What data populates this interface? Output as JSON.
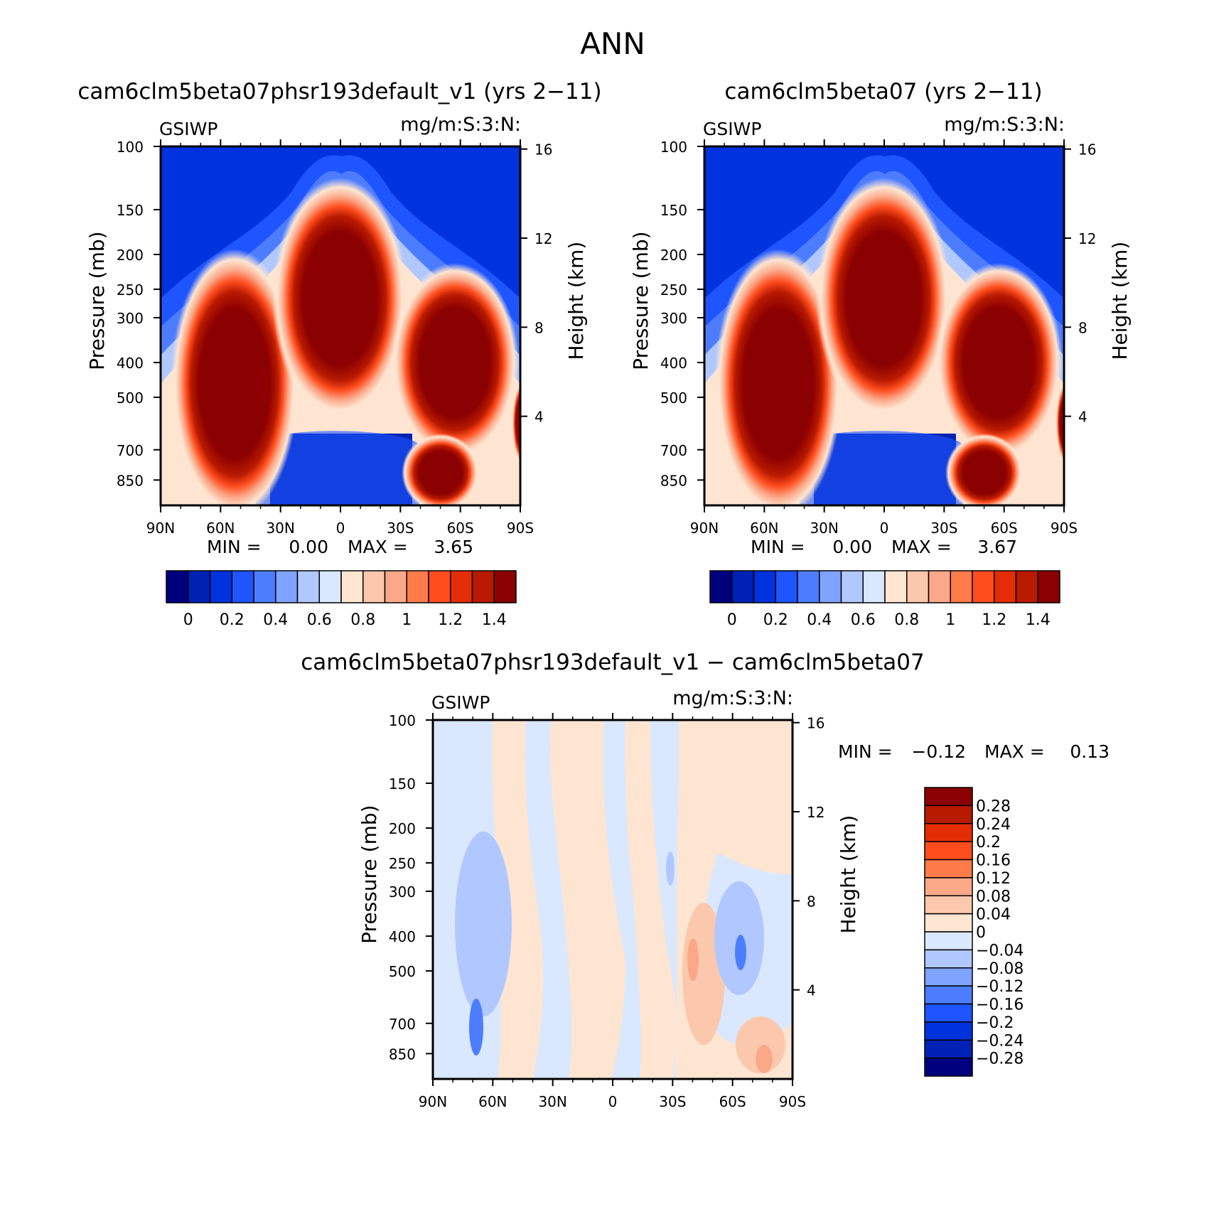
{
  "figure_title": "ANN",
  "colors": {
    "abs_scale": [
      "#00007f",
      "#0022b4",
      "#0033dd",
      "#1e55ff",
      "#4d7dff",
      "#7fa3ff",
      "#b0c8ff",
      "#d9e8ff",
      "#fde5d2",
      "#fcc8ad",
      "#fba888",
      "#ff7b4a",
      "#ff4d1e",
      "#e52d05",
      "#b81a00",
      "#8b0000"
    ],
    "diff_scale": [
      "#00007f",
      "#0022b4",
      "#0033dd",
      "#1e55ff",
      "#4d7dff",
      "#7fa3ff",
      "#b0c8ff",
      "#d9e8ff",
      "#fde5d2",
      "#fcc8ad",
      "#fba888",
      "#ff7b4a",
      "#ff4d1e",
      "#e52d05",
      "#b81a00",
      "#8b0000"
    ]
  },
  "chart_data": [
    {
      "type": "heatmap",
      "title": "cam6clm5beta07phsr193default_v1 (yrs 2−11)",
      "left_label": "GSIWP",
      "right_label": "mg/m:S:3:N:",
      "ylabel": "Pressure (mb)",
      "ylabel_right": "Height (km)",
      "x_ticks": [
        "90N",
        "60N",
        "30N",
        "0",
        "30S",
        "60S",
        "90S"
      ],
      "y_ticks": [
        "100",
        "150",
        "200",
        "250",
        "300",
        "400",
        "500",
        "700",
        "850"
      ],
      "y_ticks_right": [
        "16",
        "12",
        "8",
        "4"
      ],
      "min_label": "MIN =",
      "min_value": "0.00",
      "max_label": "MAX =",
      "max_value": "3.65",
      "colorbar_labels": [
        "0",
        "0.2",
        "0.4",
        "0.6",
        "0.8",
        "1",
        "1.2",
        "1.4"
      ]
    },
    {
      "type": "heatmap",
      "title": "cam6clm5beta07 (yrs 2−11)",
      "left_label": "GSIWP",
      "right_label": "mg/m:S:3:N:",
      "ylabel": "Pressure (mb)",
      "ylabel_right": "Height (km)",
      "x_ticks": [
        "90N",
        "60N",
        "30N",
        "0",
        "30S",
        "60S",
        "90S"
      ],
      "y_ticks": [
        "100",
        "150",
        "200",
        "250",
        "300",
        "400",
        "500",
        "700",
        "850"
      ],
      "y_ticks_right": [
        "16",
        "12",
        "8",
        "4"
      ],
      "min_label": "MIN =",
      "min_value": "0.00",
      "max_label": "MAX =",
      "max_value": "3.67",
      "colorbar_labels": [
        "0",
        "0.2",
        "0.4",
        "0.6",
        "0.8",
        "1",
        "1.2",
        "1.4"
      ]
    },
    {
      "type": "heatmap",
      "title": "cam6clm5beta07phsr193default_v1 − cam6clm5beta07",
      "left_label": "GSIWP",
      "right_label": "mg/m:S:3:N:",
      "ylabel": "Pressure (mb)",
      "ylabel_right": "Height (km)",
      "x_ticks": [
        "90N",
        "60N",
        "30N",
        "0",
        "30S",
        "60S",
        "90S"
      ],
      "y_ticks": [
        "100",
        "150",
        "200",
        "250",
        "300",
        "400",
        "500",
        "700",
        "850"
      ],
      "y_ticks_right": [
        "16",
        "12",
        "8",
        "4"
      ],
      "min_label": "MIN =",
      "min_value": "−0.12",
      "max_label": "MAX =",
      "max_value": "0.13",
      "colorbar_labels": [
        "0.28",
        "0.24",
        "0.2",
        "0.16",
        "0.12",
        "0.08",
        "0.04",
        "0",
        "−0.04",
        "−0.08",
        "−0.12",
        "−0.16",
        "−0.2",
        "−0.24",
        "−0.28"
      ]
    }
  ]
}
